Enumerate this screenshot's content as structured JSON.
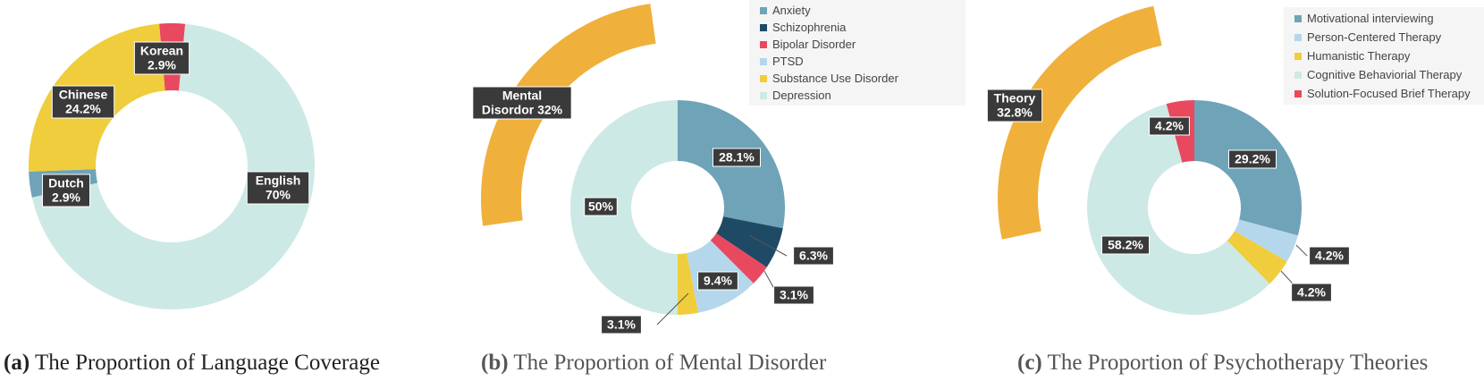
{
  "chart_data": [
    {
      "type": "pie",
      "title": "",
      "categories": [
        "Korean",
        "English",
        "Dutch",
        "Chinese"
      ],
      "values": [
        2.9,
        70,
        2.9,
        24.2
      ],
      "labels": [
        "Korean\n2.9%",
        "English\n70%",
        "Dutch\n2.9%",
        "Chinese\n24.2%"
      ],
      "colors": [
        "#e8495f",
        "#cde9e5",
        "#6fa3b8",
        "#efcd3c"
      ]
    },
    {
      "type": "pie",
      "title": "",
      "categories": [
        "Anxiety",
        "Schizophrenia",
        "Bipolar Disorder",
        "PTSD",
        "Substance Use Disorder",
        "Depression"
      ],
      "values": [
        28.1,
        6.3,
        3.1,
        9.4,
        3.1,
        50
      ],
      "labels": [
        "28.1%",
        "6.3%",
        "3.1%",
        "9.4%",
        "3.1%",
        "50%"
      ],
      "colors": [
        "#6fa3b8",
        "#1e4a66",
        "#e8495f",
        "#b4d7ec",
        "#efcd3c",
        "#cde9e5"
      ],
      "outer_arc": {
        "label": "Mental\nDisordor 32%",
        "value": 32,
        "color": "#f0b03c"
      }
    },
    {
      "type": "pie",
      "title": "",
      "categories": [
        "Motivational interviewing",
        "Person-Centered Therapy",
        "Humanistic Therapy",
        "Cognitive Behaviorial Therapy",
        "Solution-Focused Brief Therapy"
      ],
      "values": [
        29.2,
        4.2,
        4.2,
        58.2,
        4.2
      ],
      "labels": [
        "29.2%",
        "4.2%",
        "4.2%",
        "58.2%",
        "4.2%"
      ],
      "colors": [
        "#6fa3b8",
        "#b4d7ec",
        "#efcd3c",
        "#cde9e5",
        "#e8495f"
      ],
      "outer_arc": {
        "label": "Theory\n32.8%",
        "value": 32.8,
        "color": "#f0b03c"
      }
    }
  ],
  "captions": {
    "a": {
      "label": "(a)",
      "text": " The Proportion of Language Coverage"
    },
    "b": {
      "label": "(b)",
      "text": " The Proportion of Mental Disorder"
    },
    "c": {
      "label": "(c)",
      "text": " The Proportion of Psychotherapy Theories"
    }
  }
}
